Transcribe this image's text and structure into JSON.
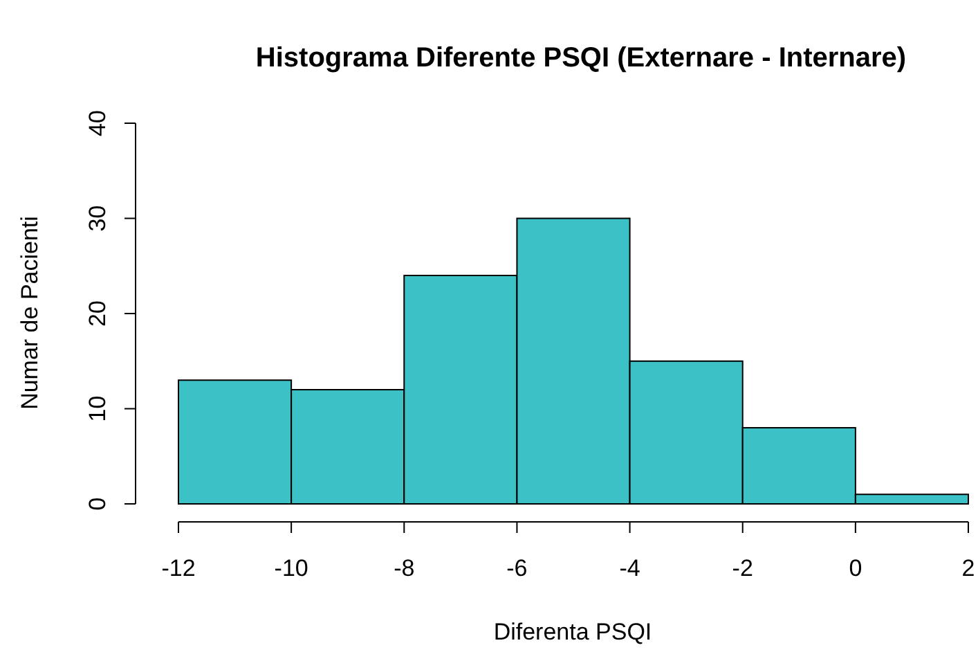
{
  "chart_data": {
    "type": "histogram",
    "title": "Histograma Diferente PSQI (Externare - Internare)",
    "xlabel": "Diferenta PSQI",
    "ylabel": "Numar de Pacienti",
    "bins": [
      -12,
      -10,
      -8,
      -6,
      -4,
      -2,
      0,
      2
    ],
    "values": [
      13,
      12,
      24,
      30,
      15,
      8,
      1
    ],
    "color": "#3cc2c6",
    "xlim": [
      -12,
      2
    ],
    "xticks": [
      -12,
      -10,
      -8,
      -6,
      -4,
      -2,
      0,
      2
    ],
    "ylim": [
      0,
      40
    ],
    "yticks": [
      0,
      10,
      20,
      30,
      40
    ],
    "grid": false
  }
}
